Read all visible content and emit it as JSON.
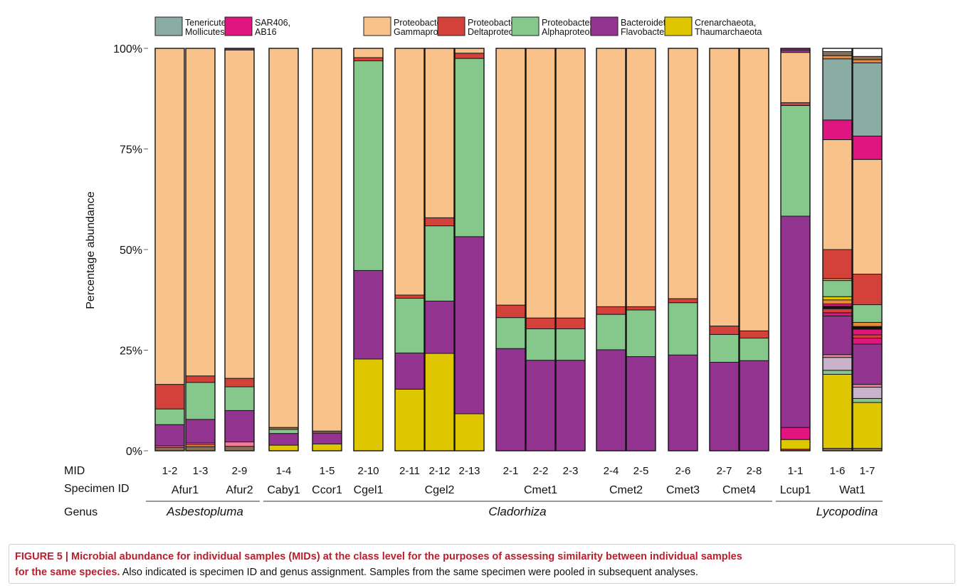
{
  "chart_data": {
    "type": "bar",
    "stacked": true,
    "ylabel": "Percentage abundance",
    "y_ticks": [
      "0%",
      "25%",
      "50%",
      "75%",
      "100%"
    ],
    "ylim": [
      0,
      100
    ],
    "legend": [
      {
        "name": "Tenericutes, Mollicutes",
        "line1": "Tenericutes,",
        "line2": "Mollicutes",
        "color": "#8aaca4"
      },
      {
        "name": "SAR406, AB16",
        "line1": "SAR406,",
        "line2": "AB16",
        "color": "#e0157f"
      },
      {
        "name": "Proteobacteria, Gammaproteob.",
        "line1": "Proteobacteria,",
        "line2": "Gammaproteob.",
        "color": "#f8c28a"
      },
      {
        "name": "Proteobacteria, Deltaproteob.",
        "line1": "Proteobacteria,",
        "line2": "Deltaproteob.",
        "color": "#d3423a"
      },
      {
        "name": "Proteobacteria, Alphaproteob.",
        "line1": "Proteobacteria,",
        "line2": "Alphaproteob.",
        "color": "#86c78b"
      },
      {
        "name": "Bacteroidetes, Flavobacteriia",
        "line1": "Bacteroidetes,",
        "line2": "Flavobacteriia",
        "color": "#933491"
      },
      {
        "name": "Crenarchaeota, Thaumarchaeota",
        "line1": "Crenarchaeota,",
        "line2": "Thaumarchaeota",
        "color": "#dec600"
      }
    ],
    "other_colors": {
      "brown": "#8c7055",
      "pink": "#f07d98",
      "orange": "#e98a3a",
      "lilac": "#c9b3ca",
      "black": "#111111"
    },
    "row_labels": {
      "mid": "MID",
      "specimen": "Specimen ID",
      "genus": "Genus"
    },
    "bars": [
      {
        "mid": "1-2",
        "specimen_group": 0,
        "segments": [
          {
            "c": "brown",
            "v": 0.8
          },
          {
            "c": "pink",
            "v": 0.4
          },
          {
            "c": "Bacteroidetes, Flavobacteriia",
            "v": 5.3
          },
          {
            "c": "Proteobacteria, Alphaproteob.",
            "v": 3.9
          },
          {
            "c": "Proteobacteria, Deltaproteob.",
            "v": 6.1
          },
          {
            "c": "Proteobacteria, Gammaproteob.",
            "v": 83.5
          }
        ]
      },
      {
        "mid": "1-3",
        "specimen_group": 0,
        "segments": [
          {
            "c": "brown",
            "v": 1.0
          },
          {
            "c": "orange",
            "v": 0.5
          },
          {
            "c": "pink",
            "v": 0.4
          },
          {
            "c": "Bacteroidetes, Flavobacteriia",
            "v": 5.9
          },
          {
            "c": "Proteobacteria, Alphaproteob.",
            "v": 9.2
          },
          {
            "c": "Proteobacteria, Deltaproteob.",
            "v": 1.6
          },
          {
            "c": "Proteobacteria, Gammaproteob.",
            "v": 81.4
          }
        ]
      },
      {
        "mid": "2-9",
        "specimen_group": 1,
        "segments": [
          {
            "c": "brown",
            "v": 1.1
          },
          {
            "c": "pink",
            "v": 1.1
          },
          {
            "c": "Bacteroidetes, Flavobacteriia",
            "v": 7.8
          },
          {
            "c": "Proteobacteria, Alphaproteob.",
            "v": 5.9
          },
          {
            "c": "Proteobacteria, Deltaproteob.",
            "v": 2.1
          },
          {
            "c": "Proteobacteria, Gammaproteob.",
            "v": 81.6
          },
          {
            "c": "Bacteroidetes, Flavobacteriia",
            "v": 0.4
          }
        ]
      },
      {
        "mid": "1-4",
        "specimen_group": 2,
        "segments": [
          {
            "c": "Crenarchaeota, Thaumarchaeota",
            "v": 1.4
          },
          {
            "c": "Bacteroidetes, Flavobacteriia",
            "v": 2.9
          },
          {
            "c": "Proteobacteria, Alphaproteob.",
            "v": 1.0
          },
          {
            "c": "brown",
            "v": 0.5
          },
          {
            "c": "Proteobacteria, Gammaproteob.",
            "v": 94.2
          }
        ]
      },
      {
        "mid": "1-5",
        "specimen_group": 3,
        "segments": [
          {
            "c": "Crenarchaeota, Thaumarchaeota",
            "v": 1.7
          },
          {
            "c": "Bacteroidetes, Flavobacteriia",
            "v": 2.7
          },
          {
            "c": "brown",
            "v": 0.5
          },
          {
            "c": "Proteobacteria, Gammaproteob.",
            "v": 95.1
          }
        ]
      },
      {
        "mid": "2-10",
        "specimen_group": 4,
        "segments": [
          {
            "c": "Crenarchaeota, Thaumarchaeota",
            "v": 22.8
          },
          {
            "c": "Bacteroidetes, Flavobacteriia",
            "v": 22.0
          },
          {
            "c": "Proteobacteria, Alphaproteob.",
            "v": 52.1
          },
          {
            "c": "Proteobacteria, Deltaproteob.",
            "v": 0.8
          },
          {
            "c": "Proteobacteria, Gammaproteob.",
            "v": 2.3
          }
        ]
      },
      {
        "mid": "2-11",
        "specimen_group": 5,
        "segments": [
          {
            "c": "Crenarchaeota, Thaumarchaeota",
            "v": 15.3
          },
          {
            "c": "Bacteroidetes, Flavobacteriia",
            "v": 9.0
          },
          {
            "c": "Proteobacteria, Alphaproteob.",
            "v": 13.6
          },
          {
            "c": "Proteobacteria, Deltaproteob.",
            "v": 0.8
          },
          {
            "c": "Proteobacteria, Gammaproteob.",
            "v": 61.3
          }
        ]
      },
      {
        "mid": "2-12",
        "specimen_group": 5,
        "segments": [
          {
            "c": "Crenarchaeota, Thaumarchaeota",
            "v": 24.2
          },
          {
            "c": "Bacteroidetes, Flavobacteriia",
            "v": 13.0
          },
          {
            "c": "Proteobacteria, Alphaproteob.",
            "v": 18.7
          },
          {
            "c": "Proteobacteria, Deltaproteob.",
            "v": 2.0
          },
          {
            "c": "Proteobacteria, Gammaproteob.",
            "v": 42.1
          }
        ]
      },
      {
        "mid": "2-13",
        "specimen_group": 5,
        "segments": [
          {
            "c": "Crenarchaeota, Thaumarchaeota",
            "v": 9.2
          },
          {
            "c": "Bacteroidetes, Flavobacteriia",
            "v": 44.0
          },
          {
            "c": "Proteobacteria, Alphaproteob.",
            "v": 44.3
          },
          {
            "c": "Proteobacteria, Deltaproteob.",
            "v": 1.3
          },
          {
            "c": "Proteobacteria, Gammaproteob.",
            "v": 1.2
          }
        ]
      },
      {
        "mid": "2-1",
        "specimen_group": 6,
        "segments": [
          {
            "c": "Bacteroidetes, Flavobacteriia",
            "v": 25.4
          },
          {
            "c": "Proteobacteria, Alphaproteob.",
            "v": 7.7
          },
          {
            "c": "Proteobacteria, Deltaproteob.",
            "v": 3.1
          },
          {
            "c": "Proteobacteria, Gammaproteob.",
            "v": 63.8
          }
        ]
      },
      {
        "mid": "2-2",
        "specimen_group": 6,
        "segments": [
          {
            "c": "Bacteroidetes, Flavobacteriia",
            "v": 22.5
          },
          {
            "c": "Proteobacteria, Alphaproteob.",
            "v": 7.8
          },
          {
            "c": "Proteobacteria, Deltaproteob.",
            "v": 2.7
          },
          {
            "c": "Proteobacteria, Gammaproteob.",
            "v": 67.0
          }
        ]
      },
      {
        "mid": "2-3",
        "specimen_group": 6,
        "segments": [
          {
            "c": "Bacteroidetes, Flavobacteriia",
            "v": 22.5
          },
          {
            "c": "Proteobacteria, Alphaproteob.",
            "v": 7.8
          },
          {
            "c": "Proteobacteria, Deltaproteob.",
            "v": 2.7
          },
          {
            "c": "Proteobacteria, Gammaproteob.",
            "v": 67.0
          }
        ]
      },
      {
        "mid": "2-4",
        "specimen_group": 7,
        "segments": [
          {
            "c": "Bacteroidetes, Flavobacteriia",
            "v": 25.1
          },
          {
            "c": "Proteobacteria, Alphaproteob.",
            "v": 8.8
          },
          {
            "c": "Proteobacteria, Deltaproteob.",
            "v": 1.9
          },
          {
            "c": "Proteobacteria, Gammaproteob.",
            "v": 64.2
          }
        ]
      },
      {
        "mid": "2-5",
        "specimen_group": 7,
        "segments": [
          {
            "c": "Bacteroidetes, Flavobacteriia",
            "v": 23.4
          },
          {
            "c": "Proteobacteria, Alphaproteob.",
            "v": 11.6
          },
          {
            "c": "Proteobacteria, Deltaproteob.",
            "v": 0.8
          },
          {
            "c": "Proteobacteria, Gammaproteob.",
            "v": 64.2
          }
        ]
      },
      {
        "mid": "2-6",
        "specimen_group": 8,
        "segments": [
          {
            "c": "Bacteroidetes, Flavobacteriia",
            "v": 23.8
          },
          {
            "c": "Proteobacteria, Alphaproteob.",
            "v": 13.0
          },
          {
            "c": "Proteobacteria, Deltaproteob.",
            "v": 1.0
          },
          {
            "c": "Proteobacteria, Gammaproteob.",
            "v": 62.2
          }
        ]
      },
      {
        "mid": "2-7",
        "specimen_group": 9,
        "segments": [
          {
            "c": "Bacteroidetes, Flavobacteriia",
            "v": 22.0
          },
          {
            "c": "Proteobacteria, Alphaproteob.",
            "v": 6.9
          },
          {
            "c": "Proteobacteria, Deltaproteob.",
            "v": 2.1
          },
          {
            "c": "Proteobacteria, Gammaproteob.",
            "v": 69.0
          }
        ]
      },
      {
        "mid": "2-8",
        "specimen_group": 9,
        "segments": [
          {
            "c": "Bacteroidetes, Flavobacteriia",
            "v": 22.4
          },
          {
            "c": "Proteobacteria, Alphaproteob.",
            "v": 5.6
          },
          {
            "c": "Proteobacteria, Deltaproteob.",
            "v": 1.8
          },
          {
            "c": "Proteobacteria, Gammaproteob.",
            "v": 70.2
          }
        ]
      },
      {
        "mid": "1-1",
        "specimen_group": 10,
        "segments": [
          {
            "c": "Proteobacteria, Deltaproteob.",
            "v": 0.4
          },
          {
            "c": "Crenarchaeota, Thaumarchaeota",
            "v": 2.4
          },
          {
            "c": "SAR406, AB16",
            "v": 3.0
          },
          {
            "c": "Bacteroidetes, Flavobacteriia",
            "v": 52.5
          },
          {
            "c": "Proteobacteria, Alphaproteob.",
            "v": 27.5
          },
          {
            "c": "Proteobacteria, Deltaproteob.",
            "v": 0.7
          },
          {
            "c": "Proteobacteria, Gammaproteob.",
            "v": 12.5
          },
          {
            "c": "Bacteroidetes, Flavobacteriia",
            "v": 0.6
          },
          {
            "c": "SAR406, AB16",
            "v": 0.4
          }
        ]
      },
      {
        "mid": "1-6",
        "specimen_group": 11,
        "segments": [
          {
            "c": "brown",
            "v": 0.6
          },
          {
            "c": "Crenarchaeota, Thaumarchaeota",
            "v": 18.4
          },
          {
            "c": "Proteobacteria, Alphaproteob.",
            "v": 1.0
          },
          {
            "c": "lilac",
            "v": 3.2
          },
          {
            "c": "pink",
            "v": 0.7
          },
          {
            "c": "Bacteroidetes, Flavobacteriia",
            "v": 9.6
          },
          {
            "c": "SAR406, AB16",
            "v": 0.8
          },
          {
            "c": "Proteobacteria, Deltaproteob.",
            "v": 1.0
          },
          {
            "c": "black",
            "v": 0.6
          },
          {
            "c": "SAR406, AB16",
            "v": 0.6
          },
          {
            "c": "orange",
            "v": 1.0
          },
          {
            "c": "Crenarchaeota, Thaumarchaeota",
            "v": 0.8
          },
          {
            "c": "Proteobacteria, Alphaproteob.",
            "v": 4.0
          },
          {
            "c": "orange",
            "v": 0.5
          },
          {
            "c": "Proteobacteria, Deltaproteob.",
            "v": 7.2
          },
          {
            "c": "Proteobacteria, Gammaproteob.",
            "v": 27.3
          },
          {
            "c": "SAR406, AB16",
            "v": 4.9
          },
          {
            "c": "Tenericutes, Mollicutes",
            "v": 15.2
          },
          {
            "c": "orange",
            "v": 0.8
          },
          {
            "c": "brown",
            "v": 1.0
          }
        ]
      },
      {
        "mid": "1-7",
        "specimen_group": 11,
        "segments": [
          {
            "c": "brown",
            "v": 0.6
          },
          {
            "c": "Crenarchaeota, Thaumarchaeota",
            "v": 11.4
          },
          {
            "c": "Proteobacteria, Alphaproteob.",
            "v": 1.0
          },
          {
            "c": "lilac",
            "v": 2.8
          },
          {
            "c": "pink",
            "v": 0.7
          },
          {
            "c": "Bacteroidetes, Flavobacteriia",
            "v": 10.0
          },
          {
            "c": "SAR406, AB16",
            "v": 1.5
          },
          {
            "c": "Proteobacteria, Deltaproteob.",
            "v": 0.8
          },
          {
            "c": "SAR406, AB16",
            "v": 1.4
          },
          {
            "c": "black",
            "v": 0.7
          },
          {
            "c": "orange",
            "v": 1.0
          },
          {
            "c": "Proteobacteria, Alphaproteob.",
            "v": 4.4
          },
          {
            "c": "Proteobacteria, Deltaproteob.",
            "v": 7.6
          },
          {
            "c": "Proteobacteria, Gammaproteob.",
            "v": 28.5
          },
          {
            "c": "SAR406, AB16",
            "v": 5.8
          },
          {
            "c": "Tenericutes, Mollicutes",
            "v": 18.2
          },
          {
            "c": "orange",
            "v": 0.8
          },
          {
            "c": "brown",
            "v": 0.8
          }
        ]
      }
    ],
    "specimens": [
      "Afur1",
      "Afur2",
      "Caby1",
      "Ccor1",
      "Cgel1",
      "Cgel2",
      "Cmet1",
      "Cmet2",
      "Cmet3",
      "Cmet4",
      "Lcup1",
      "Wat1"
    ],
    "genera": [
      "Asbestopluma",
      "Cladorhiza",
      "Lycopodina"
    ]
  },
  "caption": {
    "label": "FIGURE 5 |",
    "title_line1": " Microbial abundance for individual samples (MIDs) at the class level for the purposes of assessing similarity between individual samples",
    "title_line2": "for the same species.",
    "rest": " Also indicated is specimen ID and genus assignment. Samples from the same specimen were pooled in subsequent analyses."
  }
}
